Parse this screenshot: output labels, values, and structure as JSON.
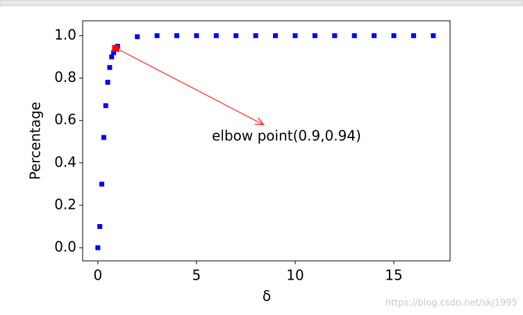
{
  "chart_data": {
    "type": "scatter",
    "x": [
      0,
      0.1,
      0.2,
      0.3,
      0.4,
      0.5,
      0.6,
      0.7,
      0.8,
      0.9,
      1,
      2,
      3,
      4,
      5,
      6,
      7,
      8,
      9,
      10,
      11,
      12,
      13,
      14,
      15,
      16,
      17
    ],
    "values": [
      0,
      0.1,
      0.3,
      0.52,
      0.67,
      0.78,
      0.85,
      0.9,
      0.92,
      0.94,
      0.95,
      0.995,
      1,
      1,
      1,
      1,
      1,
      1,
      1,
      1,
      1,
      1,
      1,
      1,
      1,
      1,
      1
    ],
    "color": "#0000ff",
    "xlabel": "δ",
    "ylabel": "Percentage",
    "xlim": [
      -0.77,
      17.85
    ],
    "ylim": [
      -0.062,
      1.07
    ],
    "xticks": [
      0,
      5,
      10,
      15
    ],
    "yticks": [
      {
        "value": 0,
        "label": "0.0"
      },
      0.2,
      0.4,
      0.6,
      0.8,
      {
        "value": 1,
        "label": "1.0"
      }
    ],
    "annotation": {
      "text": "elbow point(0.9,0.94)",
      "xy": [
        0.9,
        0.94
      ],
      "xytext": [
        8.4,
        0.58
      ],
      "color": "#ff0000"
    },
    "watermark": "https://blog.csdn.net/skj1995"
  }
}
